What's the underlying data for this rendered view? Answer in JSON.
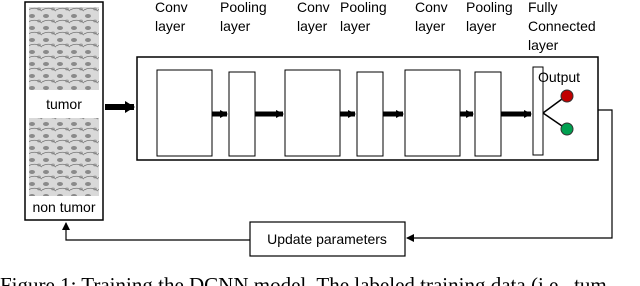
{
  "layers": [
    {
      "lines": [
        "Conv",
        "layer"
      ]
    },
    {
      "lines": [
        "Pooling",
        "layer"
      ]
    },
    {
      "lines": [
        "Conv",
        "layer"
      ]
    },
    {
      "lines": [
        "Pooling",
        "layer"
      ]
    },
    {
      "lines": [
        "Conv",
        "layer"
      ]
    },
    {
      "lines": [
        "Pooling",
        "layer"
      ]
    },
    {
      "lines": [
        "Fully",
        "Connected",
        "layer"
      ]
    }
  ],
  "output": "Output",
  "inputs": [
    "tumor",
    "non tumor"
  ],
  "update": "Update parameters",
  "caption": "Figure 1: Training the DCNN model. The labeled training data (i.e., tum"
}
